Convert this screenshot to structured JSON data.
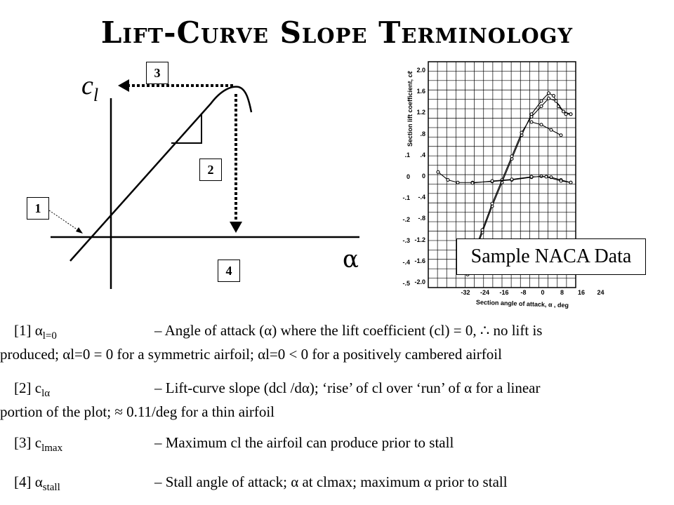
{
  "title": "Lift-Curve Slope Terminology",
  "diagram": {
    "y_axis_label": "c",
    "y_axis_sub": "l",
    "x_axis_label": "α",
    "callouts": [
      "1",
      "2",
      "3",
      "4"
    ]
  },
  "naca": {
    "label": "Sample NACA Data",
    "y_axis_title": "Section lift coefficient, cℓ",
    "x_axis_title": "Section angle of attack, α , deg",
    "y_ticks": [
      "2.0",
      "1.6",
      "1.2",
      ".8",
      ".4",
      "0",
      "-.4",
      "-.8",
      "-1.2",
      "-1.6",
      "-2.0"
    ],
    "y2_ticks": [
      ".1",
      "0",
      "-.1",
      "-.2",
      "-.3",
      "-.4",
      "-.5"
    ],
    "x_ticks": [
      "-32",
      "-24",
      "-16",
      "-8",
      "0",
      "8",
      "16",
      "24"
    ]
  },
  "definitions": [
    {
      "num": "[1]",
      "sym": "α",
      "sub": "l=0",
      "line1": "– Angle of attack (α) where the lift coefficient (cl) = 0, ∴ no lift is",
      "line2": "produced; αl=0 = 0 for a symmetric airfoil; αl=0 < 0 for a positively cambered airfoil"
    },
    {
      "num": "[2]",
      "sym": "c",
      "sub": "lα",
      "line1": "– Lift-curve slope (dcl /dα); ‘rise’ of cl over ‘run’ of α for a linear",
      "line2": "portion of the plot; ≈ 0.11/deg for a thin airfoil"
    },
    {
      "num": "[3]",
      "sym": "c",
      "sub": "lmax",
      "line1": "– Maximum cl the airfoil can produce prior to stall",
      "line2": ""
    },
    {
      "num": "[4]",
      "sym": "α",
      "sub": "stall",
      "line1": "– Stall angle of attack; α at clmax; maximum α prior to stall",
      "line2": ""
    }
  ]
}
